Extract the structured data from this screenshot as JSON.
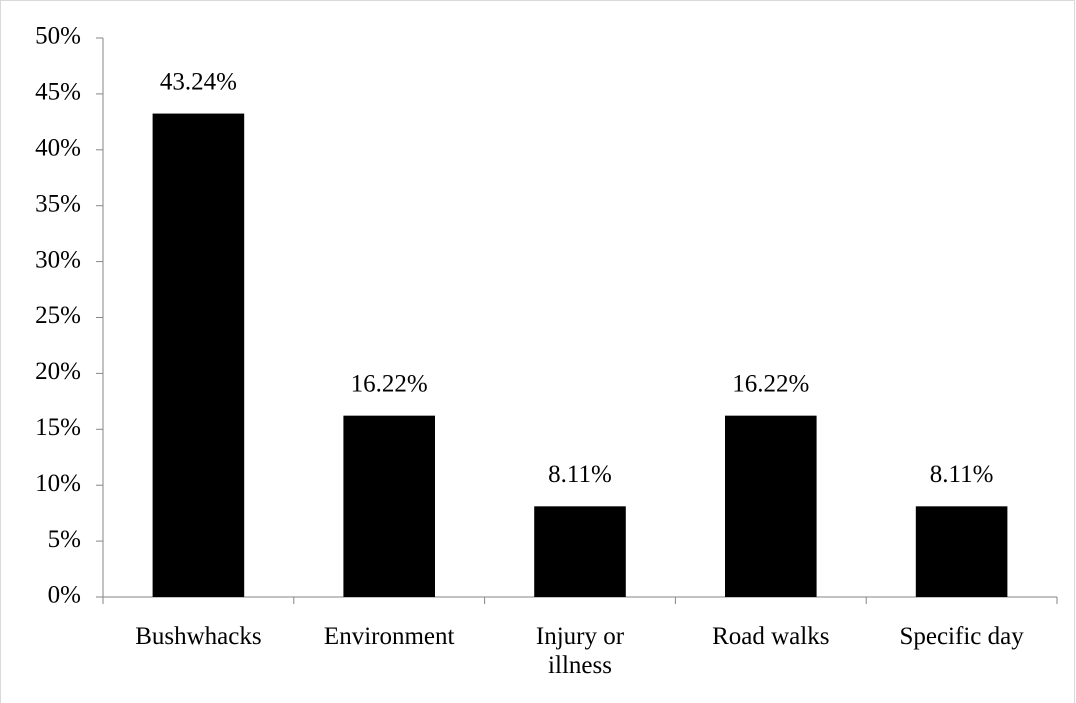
{
  "chart_data": {
    "type": "bar",
    "categories": [
      "Bushwhacks",
      "Environment",
      "Injury or illness",
      "Road walks",
      "Specific day"
    ],
    "values": [
      43.24,
      16.22,
      8.11,
      16.22,
      8.11
    ],
    "value_labels": [
      "43.24%",
      "16.22%",
      "8.11%",
      "16.22%",
      "8.11%"
    ],
    "color": "#000000",
    "ylim": [
      0,
      50
    ],
    "yticks": [
      {
        "value": 0,
        "label": "0%"
      },
      {
        "value": 5,
        "label": "5%"
      },
      {
        "value": 10,
        "label": "10%"
      },
      {
        "value": 15,
        "label": "15%"
      },
      {
        "value": 20,
        "label": "20%"
      },
      {
        "value": 25,
        "label": "25%"
      },
      {
        "value": 30,
        "label": "30%"
      },
      {
        "value": 35,
        "label": "35%"
      },
      {
        "value": 40,
        "label": "40%"
      },
      {
        "value": 45,
        "label": "45%"
      },
      {
        "value": 50,
        "label": "50%"
      }
    ],
    "grid": false
  }
}
